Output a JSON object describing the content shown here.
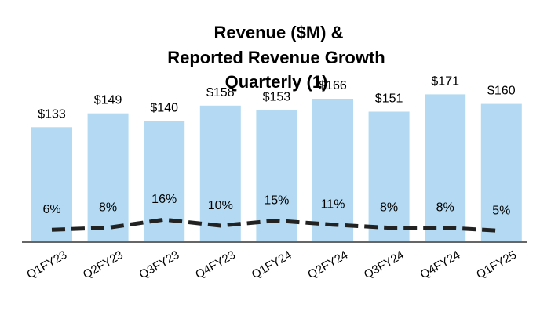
{
  "chart_data": {
    "type": "bar",
    "title_lines": [
      "Revenue ($M) &",
      "Reported Revenue Growth",
      "Quarterly (1)"
    ],
    "categories": [
      "Q1FY23",
      "Q2FY23",
      "Q3FY23",
      "Q4FY23",
      "Q1FY24",
      "Q2FY24",
      "Q3FY24",
      "Q4FY24",
      "Q1FY25"
    ],
    "value_labels": [
      "$133",
      "$149",
      "$140",
      "$158",
      "$153",
      "$166",
      "$151",
      "$171",
      "$160"
    ],
    "growth_labels": [
      "6%",
      "8%",
      "16%",
      "10%",
      "15%",
      "11%",
      "8%",
      "8%",
      "5%"
    ],
    "series": [
      {
        "type": "bar",
        "unit": "$M",
        "values": [
          133,
          149,
          140,
          158,
          153,
          166,
          151,
          171,
          160
        ]
      },
      {
        "type": "line",
        "style": "dashed",
        "unit": "%",
        "values": [
          6,
          8,
          16,
          10,
          15,
          11,
          8,
          8,
          5
        ]
      }
    ],
    "ylim": [
      0,
      185
    ],
    "growth_ylim": [
      0,
      40
    ],
    "grid": false,
    "legend": "none",
    "colors": {
      "bar": "#b3daf2",
      "line": "#222222",
      "baseline": "#666666"
    }
  }
}
